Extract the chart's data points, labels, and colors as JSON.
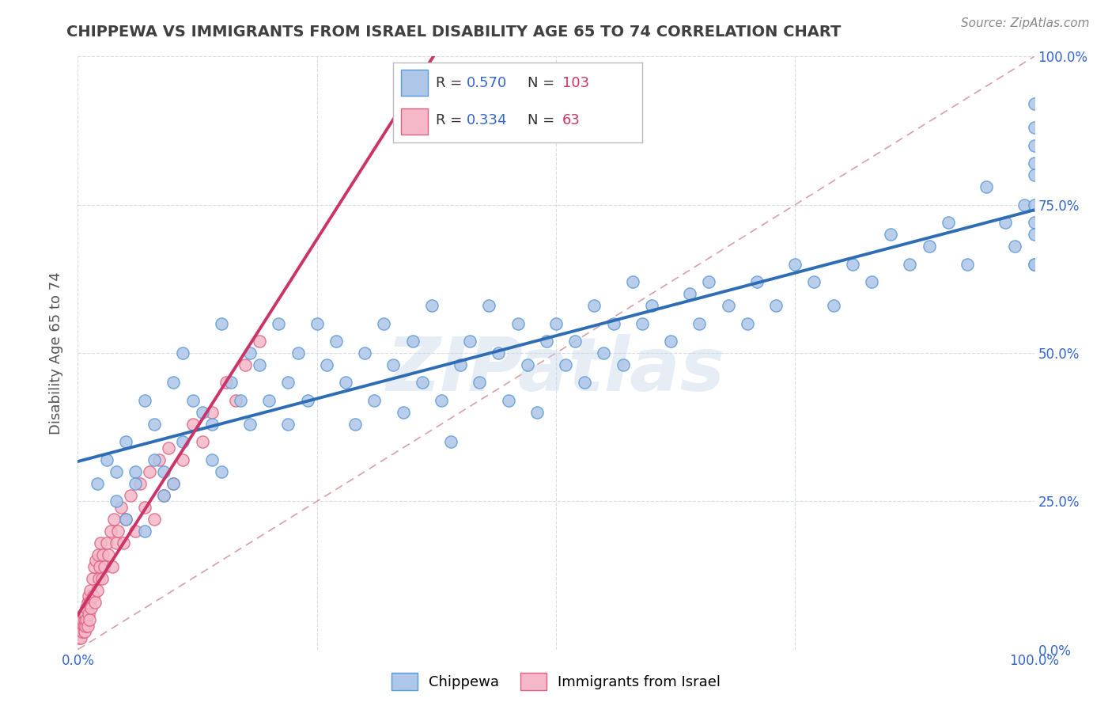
{
  "title": "CHIPPEWA VS IMMIGRANTS FROM ISRAEL DISABILITY AGE 65 TO 74 CORRELATION CHART",
  "source": "Source: ZipAtlas.com",
  "ylabel": "Disability Age 65 to 74",
  "blue_R": 0.57,
  "blue_N": 103,
  "pink_R": 0.334,
  "pink_N": 63,
  "blue_color": "#aec6e8",
  "blue_edge": "#5b9bd5",
  "pink_color": "#f4b8c8",
  "pink_edge": "#e06080",
  "blue_line_color": "#2e6db4",
  "pink_line_color": "#cc3366",
  "ref_line_color": "#d8a0a8",
  "ref_line_dash": [
    6,
    4
  ],
  "watermark": "ZIPatlas",
  "title_color": "#404040",
  "legend_R_color": "#3366cc",
  "legend_N_color": "#cc3366",
  "grid_color": "#d8dce8",
  "tick_color": "#3366cc",
  "background_color": "#ffffff",
  "blue_x": [
    0.02,
    0.03,
    0.04,
    0.04,
    0.05,
    0.05,
    0.06,
    0.06,
    0.07,
    0.07,
    0.08,
    0.08,
    0.09,
    0.09,
    0.1,
    0.1,
    0.11,
    0.11,
    0.12,
    0.13,
    0.14,
    0.14,
    0.15,
    0.15,
    0.16,
    0.17,
    0.18,
    0.18,
    0.19,
    0.2,
    0.21,
    0.22,
    0.22,
    0.23,
    0.24,
    0.25,
    0.26,
    0.27,
    0.28,
    0.29,
    0.3,
    0.31,
    0.32,
    0.33,
    0.34,
    0.35,
    0.36,
    0.37,
    0.38,
    0.39,
    0.4,
    0.41,
    0.42,
    0.43,
    0.44,
    0.45,
    0.46,
    0.47,
    0.48,
    0.49,
    0.5,
    0.51,
    0.52,
    0.53,
    0.54,
    0.55,
    0.56,
    0.57,
    0.58,
    0.59,
    0.6,
    0.62,
    0.64,
    0.65,
    0.66,
    0.68,
    0.7,
    0.71,
    0.73,
    0.75,
    0.77,
    0.79,
    0.81,
    0.83,
    0.85,
    0.87,
    0.89,
    0.91,
    0.93,
    0.95,
    0.97,
    0.98,
    0.99,
    1.0,
    1.0,
    1.0,
    1.0,
    1.0,
    1.0,
    1.0,
    1.0,
    1.0,
    1.0
  ],
  "blue_y": [
    0.28,
    0.32,
    0.3,
    0.25,
    0.35,
    0.22,
    0.3,
    0.28,
    0.42,
    0.2,
    0.38,
    0.32,
    0.3,
    0.26,
    0.45,
    0.28,
    0.5,
    0.35,
    0.42,
    0.4,
    0.38,
    0.32,
    0.55,
    0.3,
    0.45,
    0.42,
    0.5,
    0.38,
    0.48,
    0.42,
    0.55,
    0.45,
    0.38,
    0.5,
    0.42,
    0.55,
    0.48,
    0.52,
    0.45,
    0.38,
    0.5,
    0.42,
    0.55,
    0.48,
    0.4,
    0.52,
    0.45,
    0.58,
    0.42,
    0.35,
    0.48,
    0.52,
    0.45,
    0.58,
    0.5,
    0.42,
    0.55,
    0.48,
    0.4,
    0.52,
    0.55,
    0.48,
    0.52,
    0.45,
    0.58,
    0.5,
    0.55,
    0.48,
    0.62,
    0.55,
    0.58,
    0.52,
    0.6,
    0.55,
    0.62,
    0.58,
    0.55,
    0.62,
    0.58,
    0.65,
    0.62,
    0.58,
    0.65,
    0.62,
    0.7,
    0.65,
    0.68,
    0.72,
    0.65,
    0.78,
    0.72,
    0.68,
    0.75,
    0.82,
    0.72,
    0.65,
    0.8,
    0.92,
    0.75,
    0.88,
    0.7,
    0.85,
    0.65
  ],
  "pink_x": [
    0.001,
    0.002,
    0.003,
    0.004,
    0.005,
    0.005,
    0.006,
    0.006,
    0.007,
    0.007,
    0.008,
    0.008,
    0.009,
    0.009,
    0.01,
    0.01,
    0.011,
    0.011,
    0.012,
    0.012,
    0.013,
    0.014,
    0.015,
    0.016,
    0.017,
    0.018,
    0.019,
    0.02,
    0.021,
    0.022,
    0.023,
    0.024,
    0.025,
    0.026,
    0.028,
    0.03,
    0.032,
    0.034,
    0.036,
    0.038,
    0.04,
    0.042,
    0.045,
    0.048,
    0.05,
    0.055,
    0.06,
    0.065,
    0.07,
    0.075,
    0.08,
    0.085,
    0.09,
    0.095,
    0.1,
    0.11,
    0.12,
    0.13,
    0.14,
    0.155,
    0.165,
    0.175,
    0.19
  ],
  "pink_y": [
    0.02,
    0.03,
    0.02,
    0.04,
    0.03,
    0.05,
    0.04,
    0.06,
    0.05,
    0.03,
    0.06,
    0.04,
    0.07,
    0.05,
    0.08,
    0.04,
    0.09,
    0.06,
    0.08,
    0.05,
    0.1,
    0.07,
    0.12,
    0.09,
    0.14,
    0.08,
    0.15,
    0.1,
    0.16,
    0.12,
    0.14,
    0.18,
    0.12,
    0.16,
    0.14,
    0.18,
    0.16,
    0.2,
    0.14,
    0.22,
    0.18,
    0.2,
    0.24,
    0.18,
    0.22,
    0.26,
    0.2,
    0.28,
    0.24,
    0.3,
    0.22,
    0.32,
    0.26,
    0.34,
    0.28,
    0.32,
    0.38,
    0.35,
    0.4,
    0.45,
    0.42,
    0.48,
    0.52
  ]
}
